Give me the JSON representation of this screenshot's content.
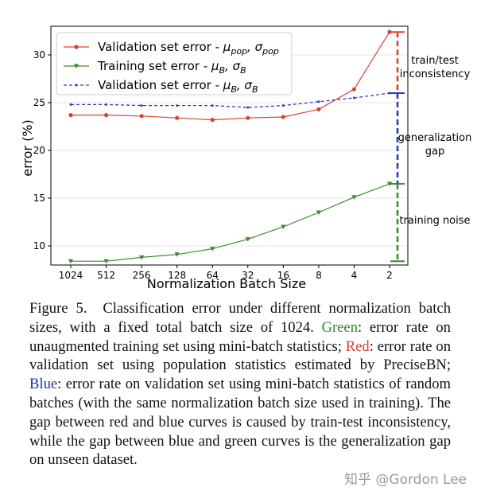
{
  "chart_data": {
    "type": "line",
    "xlabel": "Normalization Batch Size",
    "ylabel": "error (%)",
    "x": [
      "1024",
      "512",
      "256",
      "128",
      "64",
      "32",
      "16",
      "8",
      "4",
      "2"
    ],
    "ylim": [
      8,
      33
    ],
    "yticks": [
      10,
      15,
      20,
      25,
      30
    ],
    "grid": true,
    "legend_position": "top-left",
    "series": [
      {
        "name": "Validation set error - μ_pop, σ_pop",
        "legend_main": "Validation set error - ",
        "legend_math": "μ",
        "legend_sub1": "pop",
        "legend_math2": ", σ",
        "legend_sub2": "pop",
        "color": "#d9432e",
        "marker": "circle",
        "linestyle": "solid",
        "values": [
          23.7,
          23.7,
          23.6,
          23.4,
          23.2,
          23.4,
          23.5,
          24.3,
          26.4,
          32.4
        ]
      },
      {
        "name": "Training set error - μ_B, σ_B",
        "legend_main": "Training set error - ",
        "legend_math": "μ",
        "legend_sub1": "B",
        "legend_math2": ", σ",
        "legend_sub2": "B",
        "color": "#3b8c2f",
        "marker": "triangle-down",
        "linestyle": "solid",
        "values": [
          8.4,
          8.4,
          8.8,
          9.1,
          9.7,
          10.7,
          12.0,
          13.5,
          15.1,
          16.5
        ]
      },
      {
        "name": "Validation set error - μ_B, σ_B",
        "legend_main": "Validation set error - ",
        "legend_math": "μ",
        "legend_sub1": "B",
        "legend_math2": ", σ",
        "legend_sub2": "B",
        "color": "#2b3bc4",
        "marker": "dot",
        "linestyle": "dashed",
        "values": [
          24.8,
          24.8,
          24.7,
          24.7,
          24.7,
          24.5,
          24.7,
          25.1,
          25.5,
          26.0
        ]
      }
    ],
    "annotations": {
      "train_test": [
        "train/test",
        "inconsistency"
      ],
      "generalization": [
        "generalization",
        "gap"
      ],
      "training_noise": [
        "training noise"
      ]
    }
  },
  "caption": {
    "label": "Figure 5.",
    "text1": "Classification error under different normalization batch sizes, with a fixed total batch size of 1024.",
    "green_word": "Green",
    "text2": ": error rate on unaugmented training set using mini-batch statistics;",
    "red_word": "Red",
    "text3": ": error rate on validation set using population statistics estimated by PreciseBN;",
    "blue_word": "Blue",
    "text4": ": error rate on validation set using mini-batch statistics of random batches (with the same normalization batch size used in training). The gap between red and blue curves is caused by train-test inconsistency, while the gap between blue and green curves is the generalization gap on unseen dataset.",
    "green_color": "#2f8a2f",
    "red_color": "#d9432e",
    "blue_color": "#1f2fb0"
  },
  "watermark": "知乎 @Gordon Lee"
}
